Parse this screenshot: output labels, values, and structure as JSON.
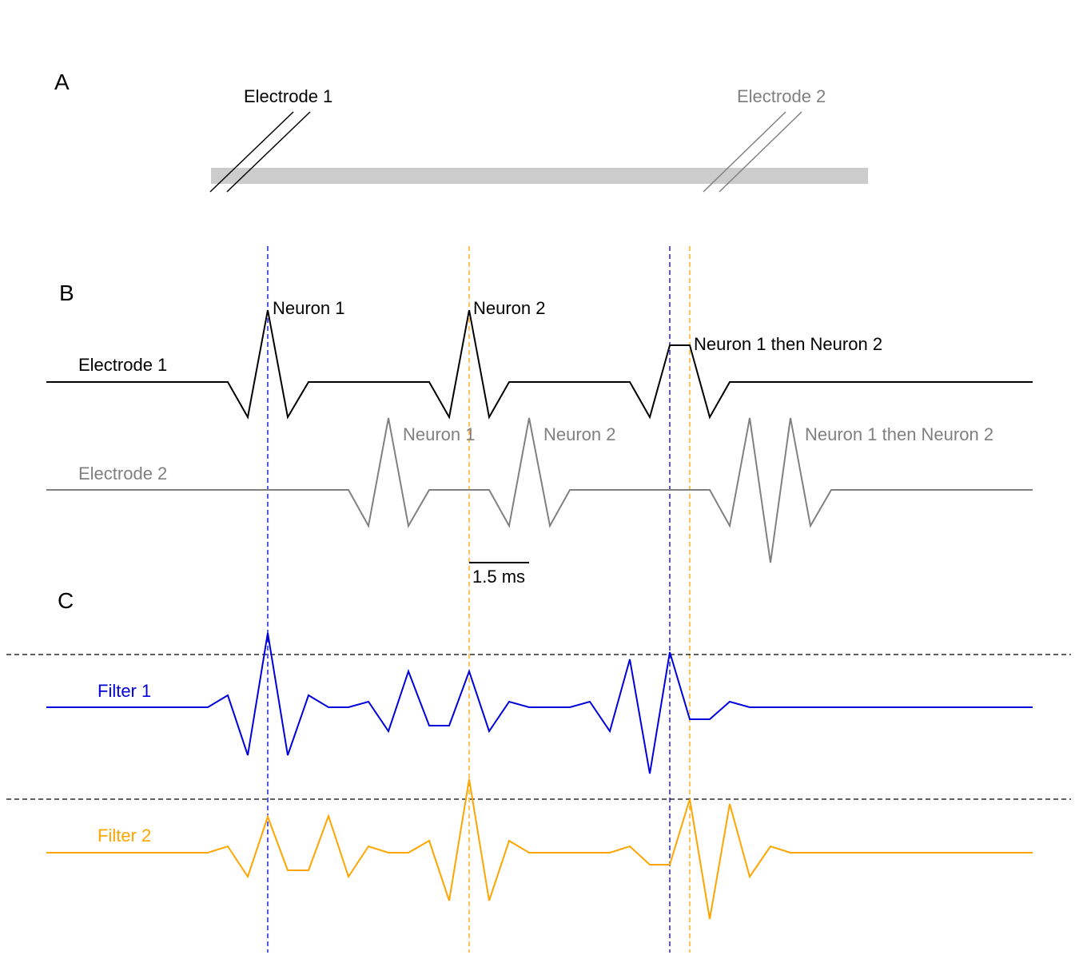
{
  "panels": {
    "a": "A",
    "b": "B",
    "c": "C"
  },
  "electrodes": {
    "e1": {
      "label": "Electrode 1",
      "color": "#000000"
    },
    "e2": {
      "label": "Electrode 2",
      "color": "#808080"
    }
  },
  "spike_labels": {
    "e1_neuron1": "Neuron 1",
    "e1_neuron2": "Neuron 2",
    "e1_both": "Neuron 1 then Neuron 2",
    "e2_neuron1": "Neuron 1",
    "e2_neuron2": "Neuron 2",
    "e2_both": "Neuron 1 then Neuron 2"
  },
  "scale_bar": {
    "label": "1.5 ms"
  },
  "filters": {
    "f1": {
      "label": "Filter 1",
      "color": "#0000dd"
    },
    "f2": {
      "label": "Filter 2",
      "color": "#ffa500"
    }
  },
  "colors": {
    "axon": "#cccccc",
    "threshold": "#000000",
    "marker_neuron1": "#0000dd",
    "marker_neuron2": "#ffa500"
  }
}
